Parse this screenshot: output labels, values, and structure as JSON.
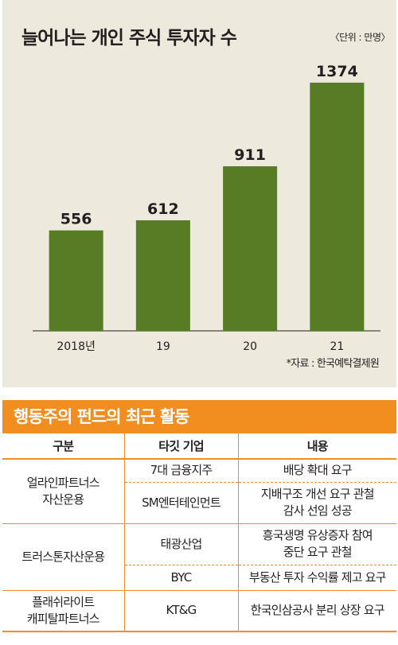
{
  "chart_data": {
    "type": "bar",
    "title": "늘어나는 개인 주식 투자자 수",
    "unit": "〈단위 : 만명〉",
    "categories": [
      "2018년",
      "19",
      "20",
      "21"
    ],
    "values": [
      556,
      612,
      911,
      1374
    ],
    "ylim": [
      0,
      1400
    ],
    "source": "*자료 : 한국예탁결제원",
    "bar_color": "#587b25",
    "background": "#ede9dc"
  },
  "table": {
    "title": "행동주의 펀드의 최근 활동",
    "headers": [
      "구분",
      "타깃 기업",
      "내용"
    ],
    "groups": [
      {
        "fund": [
          "얼라인파트너스",
          "자산운용"
        ],
        "rows": [
          {
            "target": [
              "7대 금융지주"
            ],
            "content": [
              "배당 확대 요구"
            ]
          },
          {
            "target": [
              "SM엔터테인먼트"
            ],
            "content": [
              "지배구조 개선 요구 관철",
              "감사 선임 성공"
            ]
          }
        ]
      },
      {
        "fund": [
          "트러스톤자산운용"
        ],
        "rows": [
          {
            "target": [
              "태광산업"
            ],
            "content": [
              "흥국생명 유상증자 참여",
              "중단 요구 관철"
            ]
          },
          {
            "target": [
              "BYC"
            ],
            "content": [
              "부동산 투자 수익률 제고 요구"
            ]
          }
        ]
      },
      {
        "fund": [
          "플래쉬라이트",
          "캐피탈파트너스"
        ],
        "rows": [
          {
            "target": [
              "KT&G"
            ],
            "content": [
              "한국인삼공사 분리 상장 요구"
            ]
          }
        ]
      }
    ],
    "accent": "#f28e1f"
  }
}
